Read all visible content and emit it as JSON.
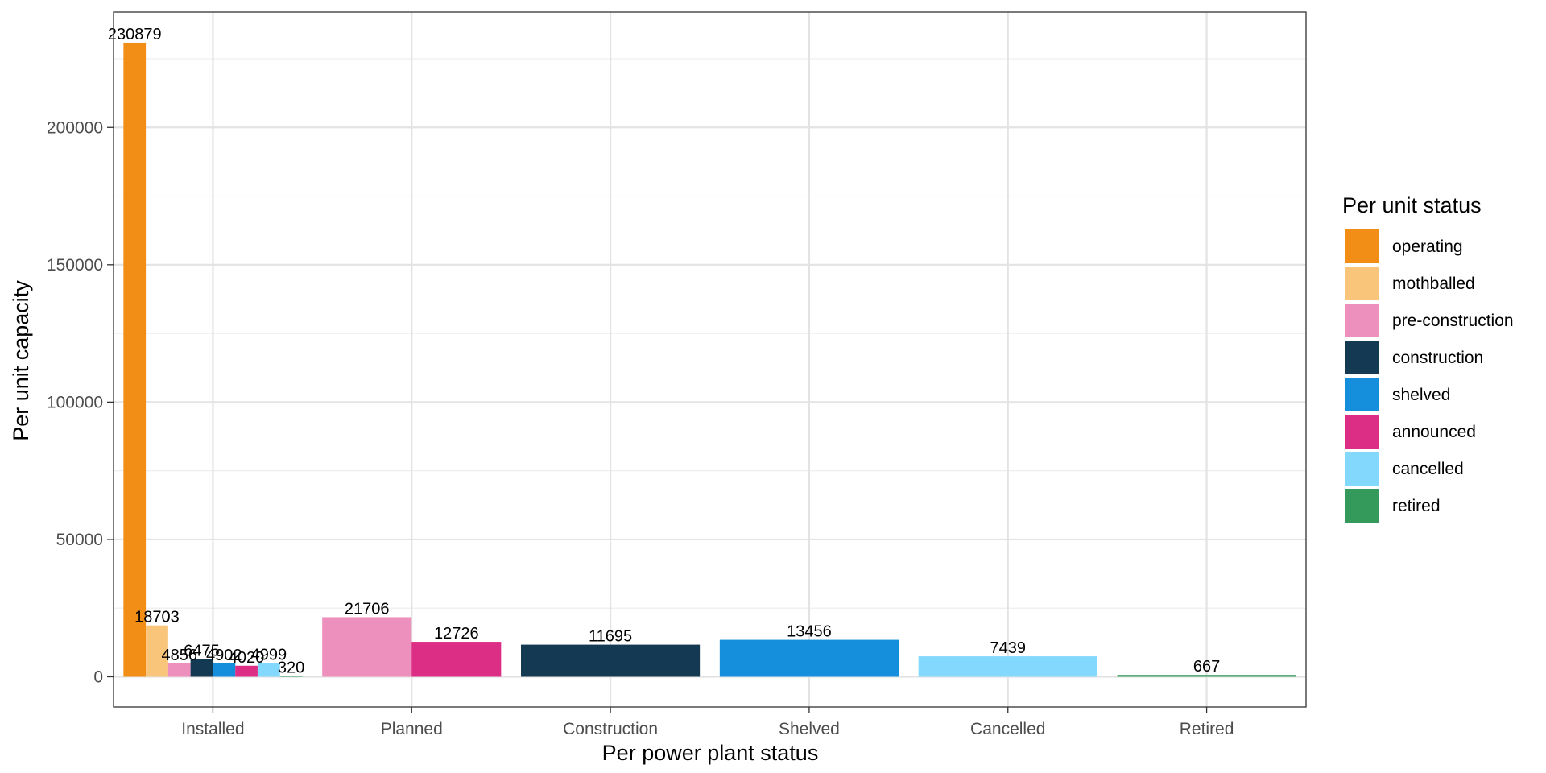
{
  "chart_data": {
    "type": "bar",
    "title": "",
    "xlabel": "Per power plant status",
    "ylabel": "Per unit capacity",
    "ylim": [
      -11000,
      242000
    ],
    "yticks": [
      0,
      50000,
      100000,
      150000,
      200000
    ],
    "ytick_labels": [
      "0",
      "50000",
      "100000",
      "150000",
      "200000"
    ],
    "grid": true,
    "legend": {
      "title": "Per unit status",
      "placement": "right",
      "entries": [
        {
          "name": "operating",
          "color": "#F28E16"
        },
        {
          "name": "mothballed",
          "color": "#F9C57B"
        },
        {
          "name": "pre-construction",
          "color": "#EE90BE"
        },
        {
          "name": "construction",
          "color": "#133A52"
        },
        {
          "name": "shelved",
          "color": "#158FDC"
        },
        {
          "name": "announced",
          "color": "#DD2E85"
        },
        {
          "name": "cancelled",
          "color": "#83D8FE"
        },
        {
          "name": "retired",
          "color": "#339A5C"
        }
      ]
    },
    "categories": [
      "Installed",
      "Planned",
      "Construction",
      "Shelved",
      "Cancelled",
      "Retired"
    ],
    "groups": [
      {
        "category": "Installed",
        "bars": [
          {
            "status": "operating",
            "value": 230879,
            "label": "230879"
          },
          {
            "status": "mothballed",
            "value": 18703,
            "label": "18703"
          },
          {
            "status": "pre-construction",
            "value": 4856,
            "label": "4856"
          },
          {
            "status": "construction",
            "value": 6475,
            "label": "6475"
          },
          {
            "status": "shelved",
            "value": 4902,
            "label": "4902"
          },
          {
            "status": "announced",
            "value": 4020,
            "label": "4020"
          },
          {
            "status": "cancelled",
            "value": 4999,
            "label": "4999"
          },
          {
            "status": "retired",
            "value": 320,
            "label": "320"
          }
        ]
      },
      {
        "category": "Planned",
        "bars": [
          {
            "status": "pre-construction",
            "value": 21706,
            "label": "21706"
          },
          {
            "status": "announced",
            "value": 12726,
            "label": "12726"
          }
        ]
      },
      {
        "category": "Construction",
        "bars": [
          {
            "status": "construction",
            "value": 11695,
            "label": "11695"
          }
        ]
      },
      {
        "category": "Shelved",
        "bars": [
          {
            "status": "shelved",
            "value": 13456,
            "label": "13456"
          }
        ]
      },
      {
        "category": "Cancelled",
        "bars": [
          {
            "status": "cancelled",
            "value": 7439,
            "label": "7439"
          }
        ]
      },
      {
        "category": "Retired",
        "bars": [
          {
            "status": "retired",
            "value": 667,
            "label": "667"
          }
        ]
      }
    ]
  }
}
